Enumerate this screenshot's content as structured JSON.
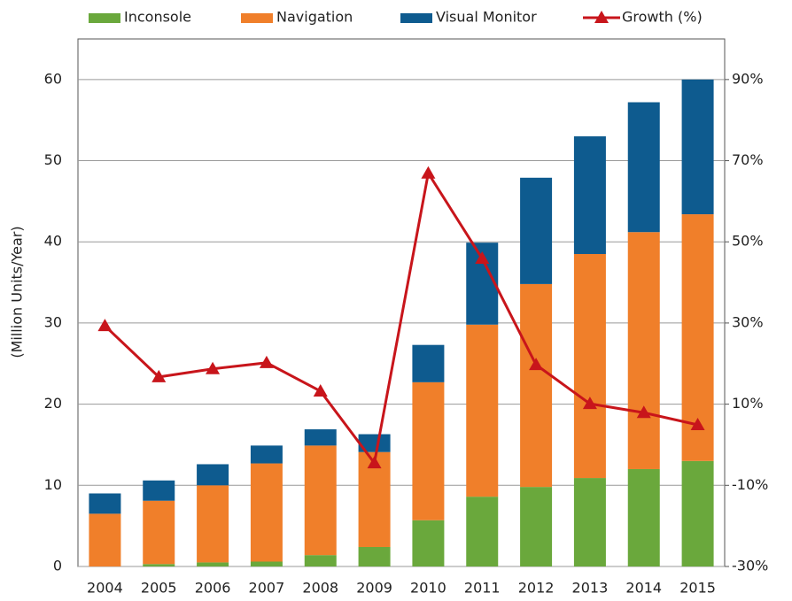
{
  "chart_data": {
    "type": "bar",
    "stacked": true,
    "ylabel": "(Million Units/Year)",
    "categories": [
      "2004",
      "2005",
      "2006",
      "2007",
      "2008",
      "2009",
      "2010",
      "2011",
      "2012",
      "2013",
      "2014",
      "2015"
    ],
    "series": [
      {
        "name": "Inconsole",
        "color": "#6aa83c",
        "values": [
          0,
          0.3,
          0.5,
          0.6,
          1.4,
          2.4,
          5.7,
          8.6,
          9.8,
          10.9,
          12.0,
          13.0
        ]
      },
      {
        "name": "Navigation",
        "color": "#f07f2a",
        "values": [
          6.5,
          7.8,
          9.5,
          12.1,
          13.5,
          11.7,
          17.0,
          21.2,
          25.0,
          27.6,
          29.2,
          30.4
        ]
      },
      {
        "name": "Visual Monitor",
        "color": "#0e5b8f",
        "values": [
          2.5,
          2.5,
          2.6,
          2.2,
          2.0,
          2.2,
          4.6,
          10.1,
          13.1,
          14.5,
          16.0,
          16.6
        ]
      },
      {
        "name": "Growth (%)",
        "color": "#c8151b",
        "type": "line",
        "axis": "y2",
        "values": [
          29.3,
          16.7,
          18.7,
          20.2,
          13.2,
          -4.5,
          66.9,
          45.9,
          19.7,
          10.1,
          7.9,
          4.9
        ]
      }
    ],
    "ylim": [
      0,
      65
    ],
    "yticks": [
      0,
      10,
      20,
      30,
      40,
      50,
      60
    ],
    "y2lim": [
      -30,
      100
    ],
    "y2ticks": [
      {
        "value": -30,
        "label": "-30%"
      },
      {
        "value": -10,
        "label": "-10%"
      },
      {
        "value": 10,
        "label": "10%"
      },
      {
        "value": 30,
        "label": "30%"
      },
      {
        "value": 50,
        "label": "50%"
      },
      {
        "value": 70,
        "label": "70%"
      },
      {
        "value": 90,
        "label": "90%"
      }
    ],
    "grid": true,
    "legend": "top"
  }
}
